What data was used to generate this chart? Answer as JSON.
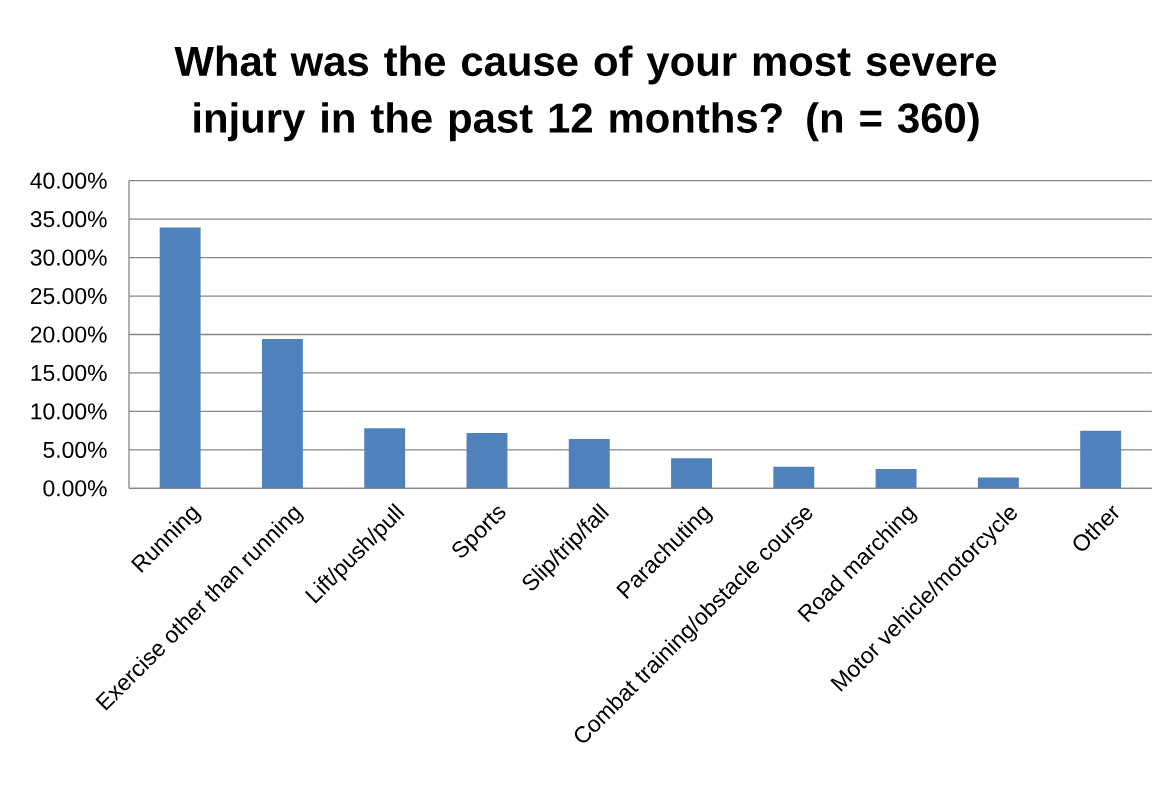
{
  "chart_data": {
    "type": "bar",
    "title": "What was the cause of your most severe injury in the past 12 months? (n = 360)",
    "categories": [
      "Running",
      "Exercise other than running",
      "Lift/push/pull",
      "Sports",
      "Slip/trip/fall",
      "Parachuting",
      "Combat training/obstacle course",
      "Road marching",
      "Motor vehicle/motorcycle",
      "Other"
    ],
    "values": [
      33.9,
      19.4,
      7.8,
      7.2,
      6.4,
      3.9,
      2.8,
      2.5,
      1.4,
      7.5
    ],
    "color": "#4f81bd",
    "ylim": [
      0,
      40
    ],
    "yticks": [
      {
        "value": 0,
        "label": "0.00%"
      },
      {
        "value": 5,
        "label": "5.00%"
      },
      {
        "value": 10,
        "label": "10.00%"
      },
      {
        "value": 15,
        "label": "15.00%"
      },
      {
        "value": 20,
        "label": "20.00%"
      },
      {
        "value": 25,
        "label": "25.00%"
      },
      {
        "value": 30,
        "label": "30.00%"
      },
      {
        "value": 35,
        "label": "35.00%"
      },
      {
        "value": 40,
        "label": "40.00%"
      }
    ],
    "grid": "y"
  }
}
